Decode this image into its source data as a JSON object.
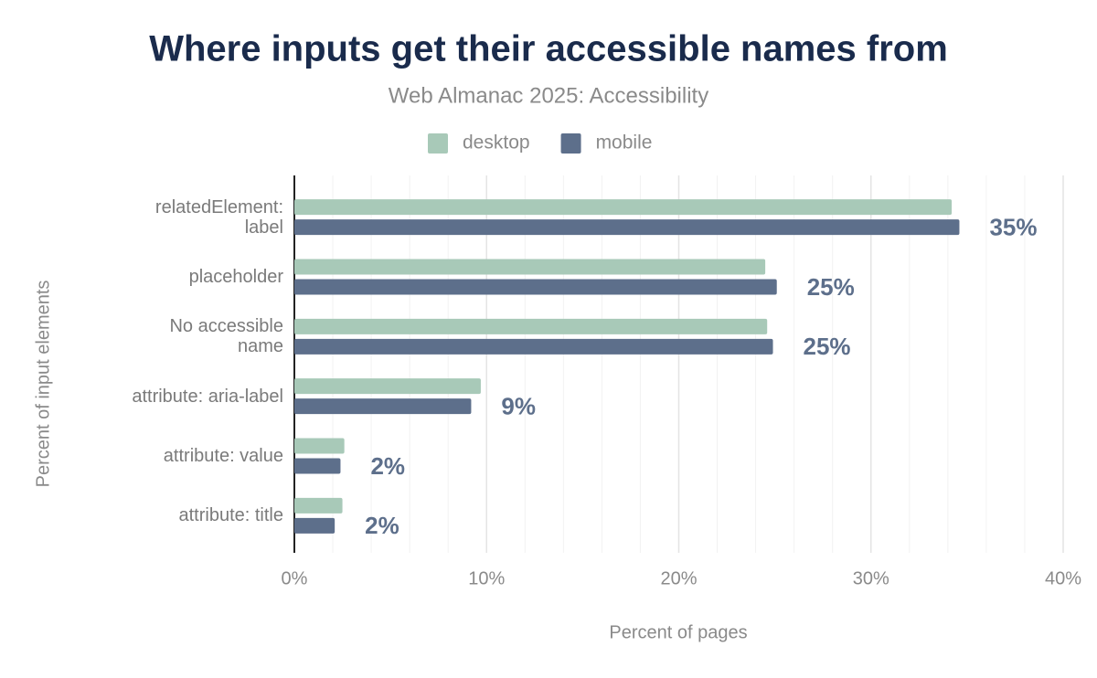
{
  "chart_data": {
    "type": "hbar",
    "title": "Where inputs get their accessible names from",
    "subtitle": "Web Almanac 2025: Accessibility",
    "x_label": "Percent of pages",
    "y_label": "Percent of input elements",
    "categories": [
      "relatedElement:\nlabel",
      "placeholder",
      "No accessible\nname",
      "attribute: aria-label",
      "attribute: value",
      "attribute: title"
    ],
    "series": [
      {
        "name": "desktop",
        "color": "#a8c9b8",
        "values": [
          34.2,
          24.5,
          24.6,
          9.7,
          2.6,
          2.5
        ]
      },
      {
        "name": "mobile",
        "color": "#5d6f8b",
        "values": [
          34.6,
          25.1,
          24.9,
          9.2,
          2.4,
          2.1
        ],
        "value_labels": [
          "35%",
          "25%",
          "25%",
          "9%",
          "2%",
          "2%"
        ]
      }
    ],
    "xlim": [
      0,
      40
    ],
    "xticks": [
      {
        "value": 0,
        "label": "0%"
      },
      {
        "value": 10,
        "label": "10%"
      },
      {
        "value": 20,
        "label": "20%"
      },
      {
        "value": 30,
        "label": "30%"
      },
      {
        "value": 40,
        "label": "40%"
      }
    ],
    "xminorticks": [
      2,
      4,
      6,
      8,
      12,
      14,
      16,
      18,
      22,
      24,
      26,
      28,
      32,
      34,
      36,
      38
    ],
    "grid": true,
    "legend": "top"
  }
}
